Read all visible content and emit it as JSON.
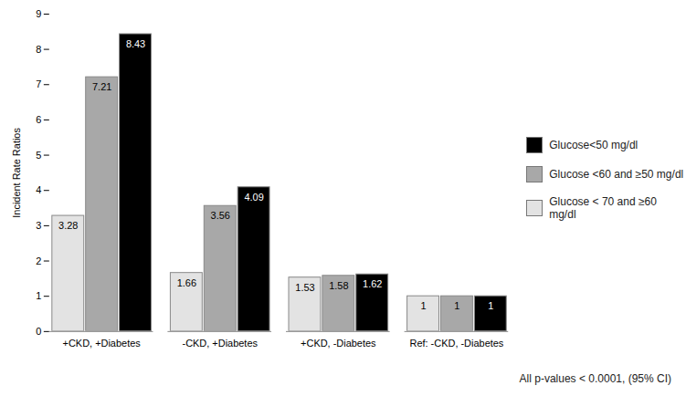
{
  "chart_data": {
    "type": "bar",
    "y_label": "Incident Rate Ratios",
    "categories": [
      "+CKD, +Diabetes",
      "-CKD, +Diabetes",
      "+CKD, -Diabetes",
      "Ref: -CKD, -Diabetes"
    ],
    "series": [
      {
        "name": "Glucose < 70 and ≥60 mg/dl",
        "color": "#e3e3e3",
        "values": [
          3.28,
          1.66,
          1.53,
          1
        ]
      },
      {
        "name": "Glucose <60 and ≥50 mg/dl",
        "color": "#a8a8a8",
        "values": [
          7.21,
          3.56,
          1.58,
          1
        ]
      },
      {
        "name": "Glucose<50 mg/dl",
        "color": "#000000",
        "values": [
          8.43,
          4.09,
          1.62,
          1
        ]
      }
    ],
    "ylim": [
      0,
      9
    ],
    "yticks": [
      0,
      1,
      2,
      3,
      4,
      5,
      6,
      7,
      8,
      9
    ],
    "grid": false,
    "legend": "right",
    "data_labels": true,
    "annotations": [
      "All p-values < 0.0001, (95% CI)"
    ]
  }
}
